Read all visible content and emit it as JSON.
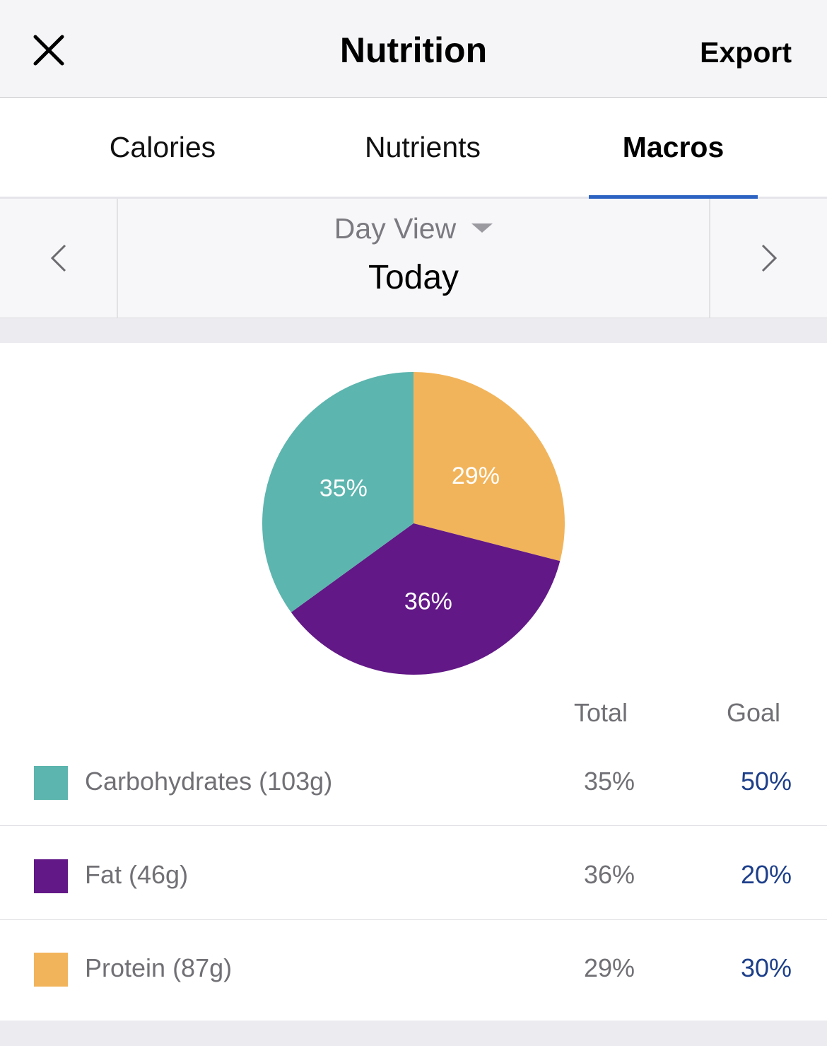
{
  "header": {
    "title": "Nutrition",
    "close_icon": "close-icon",
    "export_label": "Export"
  },
  "tabs": [
    {
      "label": "Calories",
      "active": false
    },
    {
      "label": "Nutrients",
      "active": false
    },
    {
      "label": "Macros",
      "active": true
    }
  ],
  "period": {
    "view_label": "Day View",
    "current": "Today",
    "prev_icon": "chevron-left-icon",
    "next_icon": "chevron-right-icon"
  },
  "colors": {
    "carbohydrates": "#5cb5ae",
    "fat": "#621886",
    "protein": "#f2b45a",
    "accent": "#2c63c2",
    "goal_text": "#1d3f8a"
  },
  "chart_data": {
    "type": "pie",
    "slices": [
      {
        "name": "Protein",
        "value": 29,
        "label": "29%"
      },
      {
        "name": "Fat",
        "value": 36,
        "label": "36%"
      },
      {
        "name": "Carbohydrates",
        "value": 35,
        "label": "35%"
      }
    ]
  },
  "table": {
    "headers": {
      "total": "Total",
      "goal": "Goal"
    },
    "rows": [
      {
        "label": "Carbohydrates (103g)",
        "total": "35%",
        "goal": "50%"
      },
      {
        "label": "Fat (46g)",
        "total": "36%",
        "goal": "20%"
      },
      {
        "label": "Protein (87g)",
        "total": "29%",
        "goal": "30%"
      }
    ]
  }
}
